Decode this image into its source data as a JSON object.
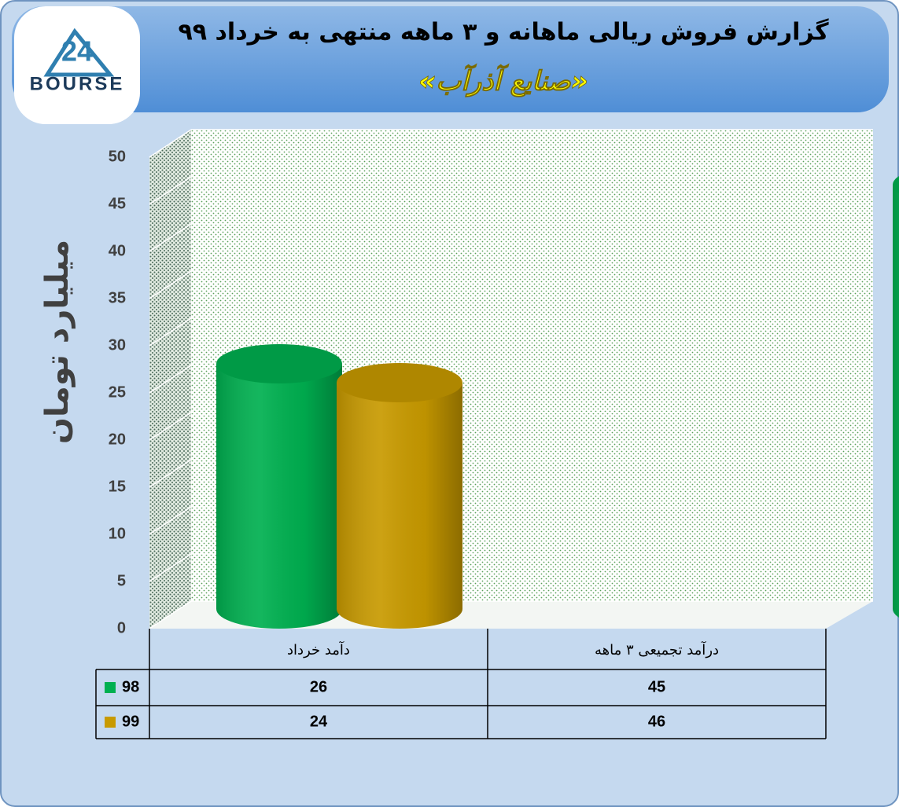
{
  "logo": {
    "number": "24",
    "name": "BOURSE"
  },
  "chart_data": {
    "type": "bar",
    "title": "گزارش فروش ریالی ماهانه و ۳ ماهه منتهی به خرداد ۹۹",
    "subtitle": "«صنایع آذرآب»",
    "y_label": "میلیارد تومان",
    "categories": [
      "دآمد خرداد",
      "درآمد تجمیعی ۳ ماهه"
    ],
    "series": [
      {
        "name": "98",
        "color": "#00b050",
        "values": [
          26,
          45
        ]
      },
      {
        "name": "99",
        "color": "#c89a00",
        "values": [
          24,
          46
        ]
      }
    ],
    "ylim": [
      0,
      50
    ],
    "yticks": [
      0,
      5,
      10,
      15,
      20,
      25,
      30,
      35,
      40,
      45,
      50
    ],
    "grid": true
  }
}
